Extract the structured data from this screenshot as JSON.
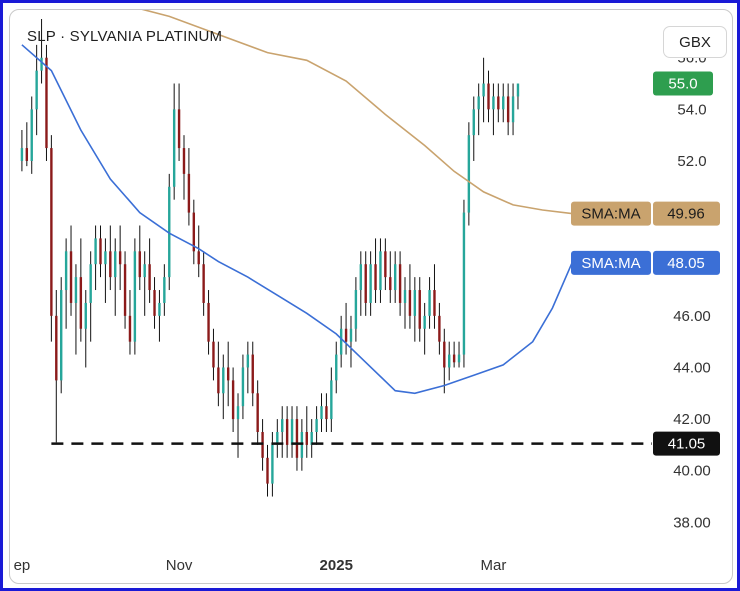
{
  "header": {
    "symbol": "SLP",
    "separator": "·",
    "name": "SYLVANIA PLATINUM",
    "currency": "GBX"
  },
  "colors": {
    "bull": "#26a69a",
    "bear": "#8b1a1a",
    "wick": "#111111",
    "sma_fast": "#3b6fd6",
    "sma_slow": "#c9a36e",
    "price_badge": "#2e9e4f",
    "support_badge": "#111111"
  },
  "chart_data": {
    "type": "candlestick",
    "ylim": [
      37.2,
      57.5
    ],
    "y_ticks": [
      "38.00",
      "40.00",
      "42.00",
      "44.00",
      "46.00",
      "52.0",
      "54.0",
      "56.0"
    ],
    "x_ticks": [
      "ep",
      "Nov",
      "2025",
      "Mar"
    ],
    "x_tick_positions": [
      0,
      32,
      64,
      96
    ],
    "x_range": [
      -1,
      112
    ],
    "price": {
      "value": 55.0,
      "label": "55.0"
    },
    "support_level": {
      "value": 41.05,
      "label": "41.05"
    },
    "series": [
      {
        "name": "SMA:MA",
        "value_label": "49.96",
        "kind": "sma_slow",
        "points": [
          [
            24,
            57.9
          ],
          [
            30,
            57.6
          ],
          [
            40,
            56.9
          ],
          [
            50,
            56.2
          ],
          [
            58,
            55.9
          ],
          [
            66,
            55.1
          ],
          [
            74,
            53.8
          ],
          [
            82,
            52.6
          ],
          [
            88,
            51.6
          ],
          [
            94,
            50.8
          ],
          [
            100,
            50.3
          ],
          [
            106,
            50.1
          ],
          [
            112,
            49.96
          ]
        ]
      },
      {
        "name": "SMA:MA",
        "value_label": "48.05",
        "kind": "sma_fast",
        "points": [
          [
            0,
            56.5
          ],
          [
            6,
            55.5
          ],
          [
            12,
            53.2
          ],
          [
            18,
            51.3
          ],
          [
            24,
            50.0
          ],
          [
            30,
            49.2
          ],
          [
            36,
            48.6
          ],
          [
            40,
            48.1
          ],
          [
            46,
            47.5
          ],
          [
            52,
            46.8
          ],
          [
            58,
            46.1
          ],
          [
            64,
            45.3
          ],
          [
            70,
            44.2
          ],
          [
            76,
            43.1
          ],
          [
            80,
            43.0
          ],
          [
            86,
            43.3
          ],
          [
            92,
            43.7
          ],
          [
            98,
            44.1
          ],
          [
            104,
            45.0
          ],
          [
            108,
            46.3
          ],
          [
            112,
            48.05
          ]
        ]
      }
    ],
    "candles": [
      [
        0,
        52.0,
        53.2,
        51.6,
        52.5
      ],
      [
        1,
        52.5,
        53.5,
        51.8,
        52.0
      ],
      [
        2,
        52.0,
        54.5,
        51.5,
        54.0
      ],
      [
        3,
        54.0,
        56.5,
        53.0,
        55.5
      ],
      [
        4,
        55.5,
        57.5,
        55.0,
        56.0
      ],
      [
        5,
        56.0,
        56.5,
        52.0,
        52.5
      ],
      [
        6,
        52.5,
        53.0,
        45.0,
        46.0
      ],
      [
        7,
        46.0,
        47.0,
        41.1,
        43.5
      ],
      [
        8,
        43.5,
        47.5,
        43.0,
        47.0
      ],
      [
        9,
        47.0,
        49.0,
        45.5,
        48.5
      ],
      [
        10,
        48.5,
        49.5,
        46.0,
        46.5
      ],
      [
        11,
        46.5,
        48.0,
        44.5,
        47.5
      ],
      [
        12,
        47.5,
        49.0,
        45.0,
        45.5
      ],
      [
        13,
        45.5,
        47.0,
        44.0,
        46.5
      ],
      [
        14,
        46.5,
        48.5,
        45.0,
        48.0
      ],
      [
        15,
        48.0,
        49.5,
        47.0,
        49.0
      ],
      [
        16,
        49.0,
        49.5,
        47.5,
        48.0
      ],
      [
        17,
        48.0,
        49.0,
        46.5,
        48.5
      ],
      [
        18,
        48.5,
        49.5,
        47.0,
        47.5
      ],
      [
        19,
        47.5,
        49.0,
        46.0,
        48.5
      ],
      [
        20,
        48.5,
        49.5,
        47.0,
        48.0
      ],
      [
        21,
        48.0,
        48.5,
        45.5,
        46.0
      ],
      [
        22,
        46.0,
        47.0,
        44.5,
        45.0
      ],
      [
        23,
        45.0,
        49.0,
        44.5,
        48.5
      ],
      [
        24,
        48.5,
        49.5,
        47.0,
        47.5
      ],
      [
        25,
        47.5,
        48.5,
        46.0,
        48.0
      ],
      [
        26,
        48.0,
        49.0,
        46.5,
        47.0
      ],
      [
        27,
        47.0,
        47.5,
        45.5,
        46.0
      ],
      [
        28,
        46.0,
        47.0,
        45.0,
        46.5
      ],
      [
        29,
        46.5,
        48.0,
        46.0,
        47.5
      ],
      [
        30,
        47.5,
        51.5,
        47.0,
        51.0
      ],
      [
        31,
        51.0,
        55.0,
        50.5,
        54.0
      ],
      [
        32,
        54.0,
        55.0,
        52.0,
        52.5
      ],
      [
        33,
        52.5,
        53.0,
        50.5,
        51.5
      ],
      [
        34,
        51.5,
        52.5,
        49.5,
        50.0
      ],
      [
        35,
        50.0,
        50.5,
        48.0,
        48.5
      ],
      [
        36,
        48.5,
        49.5,
        47.5,
        48.0
      ],
      [
        37,
        48.0,
        48.5,
        46.0,
        46.5
      ],
      [
        38,
        46.5,
        47.0,
        44.5,
        45.0
      ],
      [
        39,
        45.0,
        45.5,
        43.5,
        44.0
      ],
      [
        40,
        44.0,
        45.0,
        42.5,
        43.0
      ],
      [
        41,
        43.0,
        44.5,
        42.0,
        44.0
      ],
      [
        42,
        44.0,
        45.0,
        42.5,
        43.5
      ],
      [
        43,
        43.5,
        44.0,
        41.5,
        42.0
      ],
      [
        44,
        42.0,
        43.0,
        40.5,
        42.5
      ],
      [
        45,
        42.5,
        44.5,
        42.0,
        44.0
      ],
      [
        46,
        44.0,
        45.0,
        43.0,
        44.5
      ],
      [
        47,
        44.5,
        45.0,
        42.5,
        43.0
      ],
      [
        48,
        43.0,
        43.5,
        41.0,
        41.5
      ],
      [
        49,
        41.5,
        42.0,
        40.0,
        40.5
      ],
      [
        50,
        40.5,
        41.0,
        39.0,
        39.5
      ],
      [
        51,
        39.5,
        41.5,
        39.0,
        41.0
      ],
      [
        52,
        41.0,
        42.0,
        40.5,
        41.5
      ],
      [
        53,
        41.5,
        42.5,
        40.5,
        42.0
      ],
      [
        54,
        42.0,
        42.5,
        40.5,
        41.0
      ],
      [
        55,
        41.0,
        42.5,
        40.5,
        42.0
      ],
      [
        56,
        42.0,
        42.5,
        40.0,
        40.5
      ],
      [
        57,
        40.5,
        42.0,
        40.0,
        41.5
      ],
      [
        58,
        41.5,
        42.5,
        40.5,
        41.0
      ],
      [
        59,
        41.0,
        42.0,
        40.5,
        41.5
      ],
      [
        60,
        41.5,
        42.5,
        41.0,
        42.0
      ],
      [
        61,
        42.0,
        43.0,
        41.5,
        42.5
      ],
      [
        62,
        42.5,
        43.0,
        41.5,
        42.0
      ],
      [
        63,
        42.0,
        44.0,
        41.5,
        43.5
      ],
      [
        64,
        43.5,
        45.0,
        43.0,
        44.5
      ],
      [
        65,
        44.5,
        46.0,
        44.0,
        45.5
      ],
      [
        66,
        45.5,
        46.5,
        44.5,
        45.0
      ],
      [
        67,
        45.0,
        46.0,
        44.0,
        45.5
      ],
      [
        68,
        45.5,
        47.5,
        45.0,
        47.0
      ],
      [
        69,
        47.0,
        48.5,
        46.0,
        48.0
      ],
      [
        70,
        48.0,
        48.5,
        46.0,
        46.5
      ],
      [
        71,
        46.5,
        48.5,
        46.0,
        48.0
      ],
      [
        72,
        48.0,
        49.0,
        46.5,
        47.0
      ],
      [
        73,
        47.0,
        49.0,
        46.5,
        48.5
      ],
      [
        74,
        48.5,
        49.0,
        47.0,
        47.5
      ],
      [
        75,
        47.5,
        48.5,
        46.5,
        47.0
      ],
      [
        76,
        47.0,
        48.5,
        46.5,
        48.0
      ],
      [
        77,
        48.0,
        48.5,
        46.0,
        46.5
      ],
      [
        78,
        46.5,
        47.5,
        45.5,
        47.0
      ],
      [
        79,
        47.0,
        48.0,
        45.5,
        46.0
      ],
      [
        80,
        46.0,
        47.5,
        45.0,
        47.0
      ],
      [
        81,
        47.0,
        47.5,
        45.0,
        45.5
      ],
      [
        82,
        45.5,
        46.5,
        44.5,
        46.0
      ],
      [
        83,
        46.0,
        47.5,
        45.5,
        47.0
      ],
      [
        84,
        47.0,
        48.0,
        45.5,
        46.0
      ],
      [
        85,
        46.0,
        46.5,
        44.5,
        45.0
      ],
      [
        86,
        45.0,
        45.5,
        43.0,
        44.0
      ],
      [
        87,
        44.0,
        45.0,
        43.5,
        44.5
      ],
      [
        88,
        44.5,
        45.0,
        44.0,
        44.2
      ],
      [
        89,
        44.2,
        45.0,
        44.0,
        44.5
      ],
      [
        90,
        44.5,
        50.5,
        44.0,
        50.0
      ],
      [
        91,
        50.0,
        53.5,
        49.5,
        53.0
      ],
      [
        92,
        53.0,
        54.5,
        52.0,
        54.0
      ],
      [
        93,
        54.0,
        55.0,
        53.0,
        54.5
      ],
      [
        94,
        54.5,
        56.0,
        53.5,
        55.0
      ],
      [
        95,
        55.0,
        55.5,
        53.5,
        54.0
      ],
      [
        96,
        54.0,
        55.0,
        53.0,
        54.5
      ],
      [
        97,
        54.5,
        55.0,
        53.5,
        54.0
      ],
      [
        98,
        54.0,
        55.0,
        53.5,
        54.5
      ],
      [
        99,
        54.5,
        55.0,
        53.0,
        53.5
      ],
      [
        100,
        53.5,
        55.0,
        53.0,
        54.5
      ],
      [
        101,
        54.5,
        55.0,
        54.0,
        55.0
      ]
    ]
  }
}
